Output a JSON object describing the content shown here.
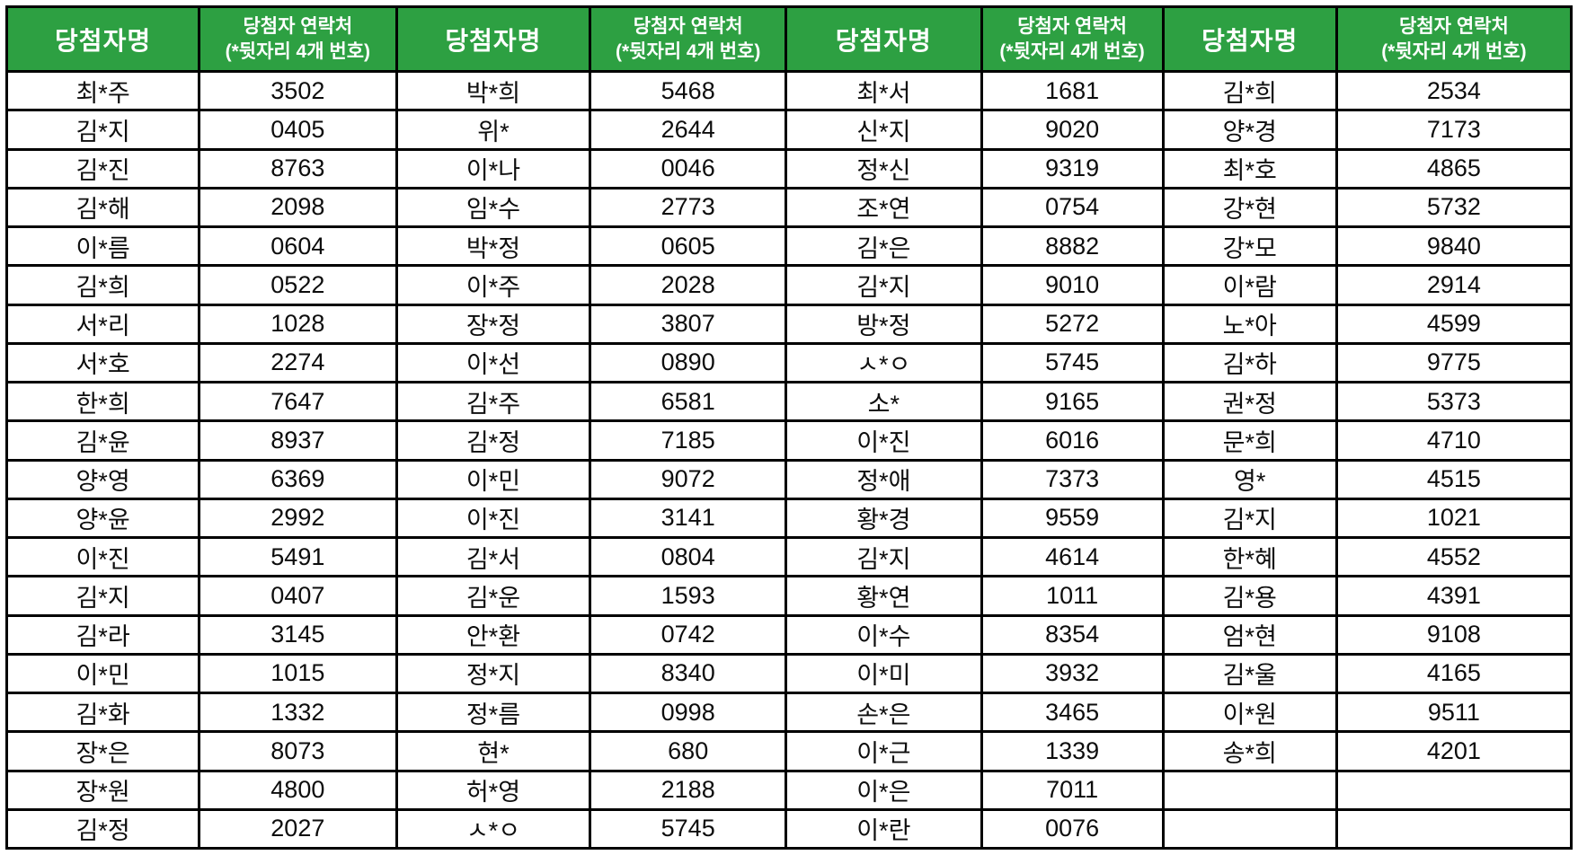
{
  "colors": {
    "header_bg": "#2da042",
    "header_text": "#ffffff",
    "border": "#000000"
  },
  "table": {
    "header": {
      "name_label": "당첨자명",
      "contact_label_line1": "당첨자 연락처",
      "contact_label_line2": "(*뒷자리 4개 번호)"
    },
    "rows": [
      [
        "최*주",
        "3502",
        "박*희",
        "5468",
        "최*서",
        "1681",
        "김*희",
        "2534"
      ],
      [
        "김*지",
        "0405",
        "위*",
        "2644",
        "신*지",
        "9020",
        "양*경",
        "7173"
      ],
      [
        "김*진",
        "8763",
        "이*나",
        "0046",
        "정*신",
        "9319",
        "최*호",
        "4865"
      ],
      [
        "김*해",
        "2098",
        "임*수",
        "2773",
        "조*연",
        "0754",
        "강*현",
        "5732"
      ],
      [
        "이*름",
        "0604",
        "박*정",
        "0605",
        "김*은",
        "8882",
        "강*모",
        "9840"
      ],
      [
        "김*희",
        "0522",
        "이*주",
        "2028",
        "김*지",
        "9010",
        "이*람",
        "2914"
      ],
      [
        "서*리",
        "1028",
        "장*정",
        "3807",
        "방*정",
        "5272",
        "노*아",
        "4599"
      ],
      [
        "서*호",
        "2274",
        "이*선",
        "0890",
        "ㅅ*ㅇ",
        "5745",
        "김*하",
        "9775"
      ],
      [
        "한*희",
        "7647",
        "김*주",
        "6581",
        "소*",
        "9165",
        "권*정",
        "5373"
      ],
      [
        "김*윤",
        "8937",
        "김*정",
        "7185",
        "이*진",
        "6016",
        "문*희",
        "4710"
      ],
      [
        "양*영",
        "6369",
        "이*민",
        "9072",
        "정*애",
        "7373",
        "영*",
        "4515"
      ],
      [
        "양*윤",
        "2992",
        "이*진",
        "3141",
        "황*경",
        "9559",
        "김*지",
        "1021"
      ],
      [
        "이*진",
        "5491",
        "김*서",
        "0804",
        "김*지",
        "4614",
        "한*혜",
        "4552"
      ],
      [
        "김*지",
        "0407",
        "김*운",
        "1593",
        "황*연",
        "1011",
        "김*용",
        "4391"
      ],
      [
        "김*라",
        "3145",
        "안*환",
        "0742",
        "이*수",
        "8354",
        "엄*현",
        "9108"
      ],
      [
        "이*민",
        "1015",
        "정*지",
        "8340",
        "이*미",
        "3932",
        "김*울",
        "4165"
      ],
      [
        "김*화",
        "1332",
        "정*름",
        "0998",
        "손*은",
        "3465",
        "이*원",
        "9511"
      ],
      [
        "장*은",
        "8073",
        "현*",
        "680",
        "이*근",
        "1339",
        "송*희",
        "4201"
      ],
      [
        "장*원",
        "4800",
        "허*영",
        "2188",
        "이*은",
        "7011",
        "",
        ""
      ],
      [
        "김*정",
        "2027",
        "ㅅ*ㅇ",
        "5745",
        "이*란",
        "0076",
        "",
        ""
      ]
    ]
  }
}
